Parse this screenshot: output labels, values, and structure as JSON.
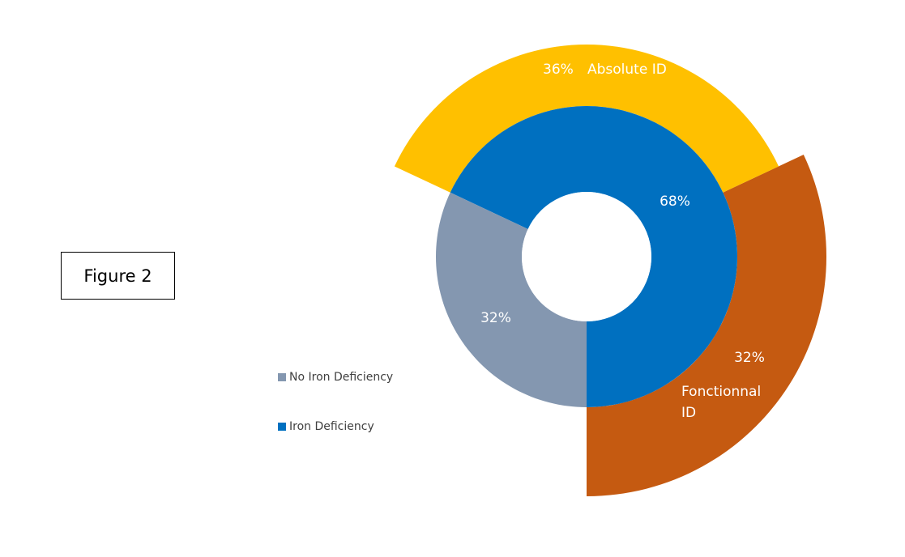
{
  "figure_label": "Figure 2",
  "chart_data": {
    "type": "donut",
    "inner_ring": {
      "slices": [
        {
          "name": "Iron Deficiency",
          "value": 68,
          "label": "68%",
          "color": "#0070C0"
        },
        {
          "name": "No Iron Deficiency",
          "value": 32,
          "label": "32%",
          "color": "#8497B0"
        }
      ]
    },
    "outer_ring": {
      "slices": [
        {
          "name": "Fonctionnal ID",
          "value": 32,
          "label": "32%",
          "category_label_lines": [
            "Fonctionnal",
            "ID"
          ],
          "color": "#C55A11"
        },
        {
          "name": "Absolute ID",
          "value": 36,
          "label": "36%",
          "category_label": "Absolute ID",
          "color": "#FFC000"
        }
      ]
    },
    "legend": {
      "placement": "left",
      "entries": [
        {
          "label": "No Iron Deficiency",
          "color": "#8497B0"
        },
        {
          "label": "Iron Deficiency",
          "color": "#0070C0"
        }
      ]
    }
  }
}
